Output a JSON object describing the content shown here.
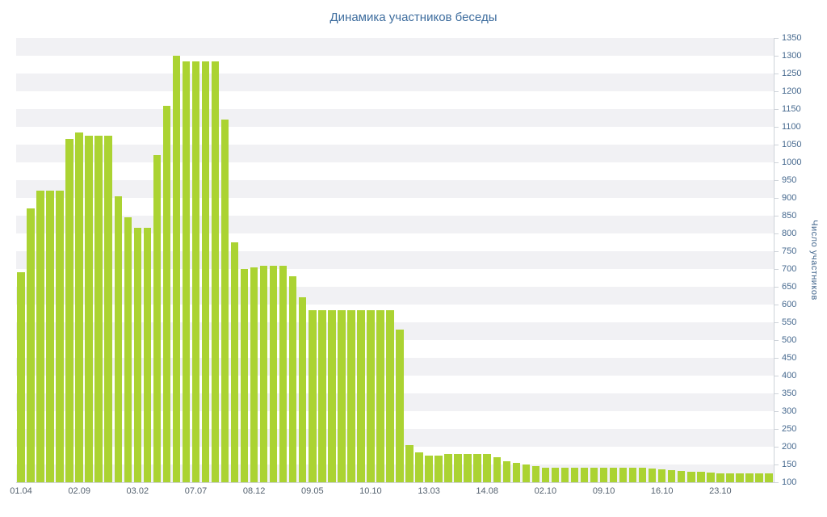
{
  "chart_data": {
    "type": "bar",
    "title": "Динамика участников беседы",
    "ylabel": "Число участников",
    "xlabel": "",
    "ymin": 100,
    "ymax": 1350,
    "y_tick_step": 50,
    "y_ticks": [
      1350,
      1300,
      1250,
      1200,
      1150,
      1100,
      1050,
      1000,
      950,
      900,
      850,
      800,
      750,
      700,
      650,
      600,
      550,
      500,
      450,
      400,
      350,
      300,
      250,
      200,
      150,
      100
    ],
    "x_tick_labels": [
      "01.04",
      "02.09",
      "03.02",
      "07.07",
      "08.12",
      "09.05",
      "10.10",
      "13.03",
      "14.08",
      "02.10",
      "09.10",
      "16.10",
      "23.10"
    ],
    "x_tick_interval": 6,
    "values": [
      690,
      870,
      920,
      920,
      920,
      1065,
      1085,
      1075,
      1075,
      1075,
      905,
      845,
      815,
      815,
      1020,
      1160,
      1300,
      1285,
      1285,
      1285,
      1285,
      1120,
      775,
      700,
      705,
      710,
      710,
      710,
      680,
      620,
      585,
      585,
      585,
      585,
      585,
      585,
      585,
      585,
      585,
      530,
      205,
      185,
      175,
      175,
      180,
      180,
      180,
      180,
      180,
      170,
      160,
      155,
      150,
      145,
      140,
      140,
      140,
      140,
      140,
      140,
      142,
      142,
      140,
      140,
      140,
      138,
      136,
      134,
      132,
      130,
      130,
      128,
      126,
      126,
      125,
      125,
      125,
      125
    ],
    "legend": "none",
    "grid": "alternating-horizontal-bands",
    "bar_color": "#abd332",
    "band_color": "#f1f1f4",
    "text_color": "#45688e",
    "x_text_color": "#556270",
    "title_color": "#3e6d9e",
    "axis_color": "#ced3d9"
  }
}
